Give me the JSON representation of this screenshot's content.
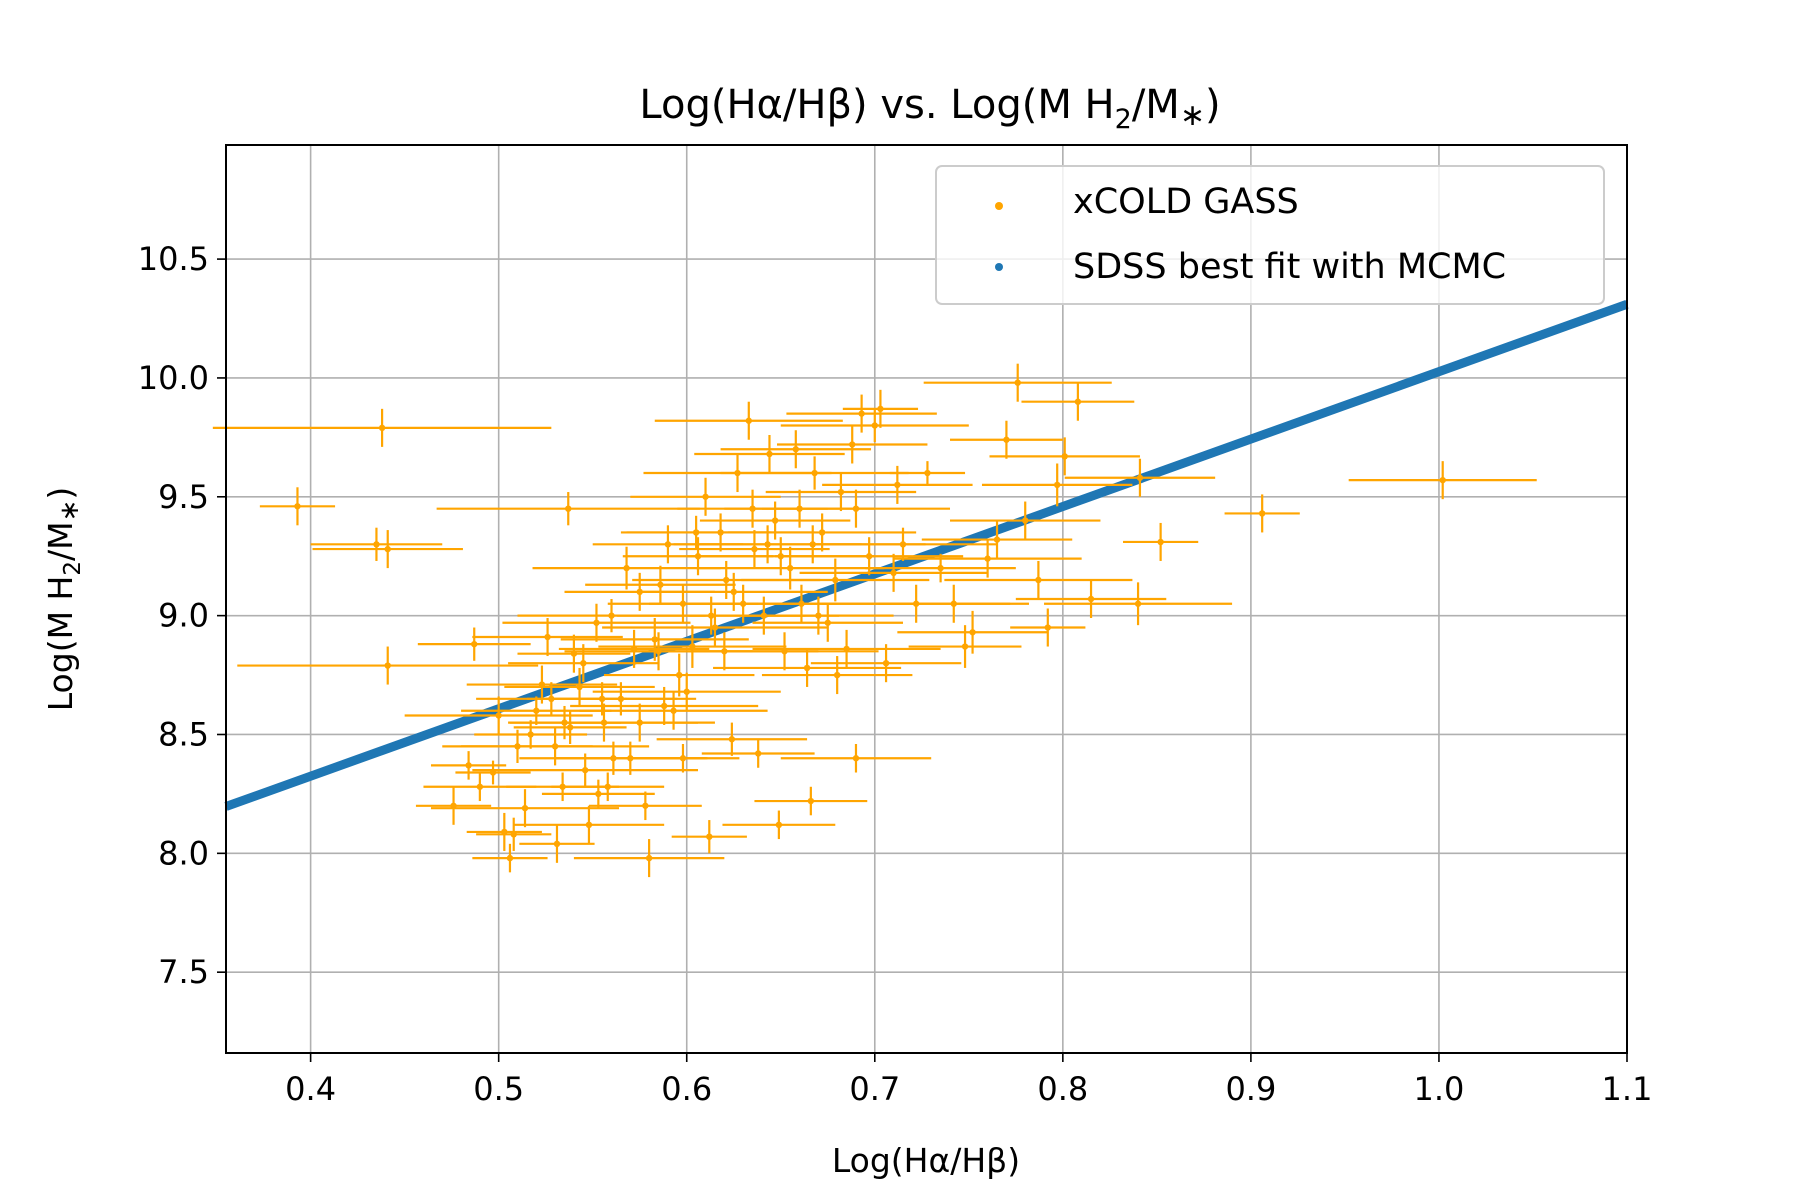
{
  "chart_data": {
    "type": "scatter",
    "title_parts": {
      "main": "Log(Hα/Hβ) vs. Log(M H",
      "sub": "2",
      "rest": "/M",
      "star": "∗",
      "close": ")"
    },
    "xlabel": "Log(Hα/Hβ)",
    "ylabel_parts": {
      "main": "Log(M H",
      "sub": "2",
      "rest": "/M",
      "star": "∗",
      "close": ")"
    },
    "xlim": [
      0.355,
      1.1
    ],
    "ylim": [
      7.16,
      10.98
    ],
    "x_ticks": [
      0.4,
      0.5,
      0.6,
      0.7,
      0.8,
      0.9,
      1.0,
      1.1
    ],
    "x_tick_labels": [
      "0.4",
      "0.5",
      "0.6",
      "0.7",
      "0.8",
      "0.9",
      "1.0",
      "1.1"
    ],
    "y_ticks": [
      7.5,
      8.0,
      8.5,
      9.0,
      9.5,
      10.0,
      10.5
    ],
    "y_tick_labels": [
      "7.5",
      "8.0",
      "8.5",
      "9.0",
      "9.5",
      "10.0",
      "10.5"
    ],
    "grid": true,
    "legend_position": "top-right",
    "colors": {
      "xcold": "#ffa500",
      "fit": "#1f77b4",
      "grid": "#b0b0b0"
    },
    "series": [
      {
        "name": "xCOLD GASS",
        "kind": "errorbar-scatter",
        "points": [
          [
            0.393,
            9.46,
            0.02,
            0.08
          ],
          [
            0.438,
            9.79,
            0.09,
            0.08
          ],
          [
            0.435,
            9.3,
            0.035,
            0.07
          ],
          [
            0.441,
            9.28,
            0.04,
            0.08
          ],
          [
            0.441,
            8.79,
            0.08,
            0.08
          ],
          [
            0.537,
            9.45,
            0.07,
            0.07
          ],
          [
            0.487,
            8.88,
            0.03,
            0.07
          ],
          [
            0.476,
            8.2,
            0.02,
            0.08
          ],
          [
            0.484,
            8.37,
            0.02,
            0.06
          ],
          [
            0.49,
            8.28,
            0.03,
            0.06
          ],
          [
            0.497,
            8.34,
            0.02,
            0.05
          ],
          [
            0.503,
            8.09,
            0.02,
            0.08
          ],
          [
            0.506,
            7.98,
            0.02,
            0.06
          ],
          [
            0.508,
            8.08,
            0.02,
            0.07
          ],
          [
            0.514,
            8.19,
            0.05,
            0.08
          ],
          [
            0.52,
            8.6,
            0.04,
            0.06
          ],
          [
            0.526,
            8.91,
            0.04,
            0.08
          ],
          [
            0.53,
            8.45,
            0.05,
            0.08
          ],
          [
            0.531,
            8.04,
            0.02,
            0.08
          ],
          [
            0.534,
            8.28,
            0.03,
            0.06
          ],
          [
            0.538,
            8.53,
            0.03,
            0.07
          ],
          [
            0.54,
            8.84,
            0.03,
            0.08
          ],
          [
            0.543,
            8.7,
            0.04,
            0.08
          ],
          [
            0.546,
            8.35,
            0.06,
            0.07
          ],
          [
            0.548,
            8.12,
            0.04,
            0.08
          ],
          [
            0.552,
            8.97,
            0.05,
            0.08
          ],
          [
            0.556,
            8.55,
            0.05,
            0.08
          ],
          [
            0.558,
            8.28,
            0.03,
            0.06
          ],
          [
            0.561,
            8.4,
            0.05,
            0.07
          ],
          [
            0.565,
            8.65,
            0.04,
            0.07
          ],
          [
            0.568,
            9.2,
            0.05,
            0.09
          ],
          [
            0.572,
            8.86,
            0.04,
            0.08
          ],
          [
            0.575,
            9.1,
            0.04,
            0.08
          ],
          [
            0.578,
            8.2,
            0.03,
            0.06
          ],
          [
            0.58,
            7.98,
            0.04,
            0.08
          ],
          [
            0.583,
            8.9,
            0.05,
            0.09
          ],
          [
            0.586,
            9.13,
            0.04,
            0.08
          ],
          [
            0.59,
            9.3,
            0.04,
            0.08
          ],
          [
            0.593,
            8.6,
            0.05,
            0.08
          ],
          [
            0.596,
            8.75,
            0.04,
            0.09
          ],
          [
            0.598,
            9.05,
            0.04,
            0.08
          ],
          [
            0.6,
            8.68,
            0.05,
            0.08
          ],
          [
            0.603,
            8.87,
            0.05,
            0.09
          ],
          [
            0.606,
            9.25,
            0.04,
            0.08
          ],
          [
            0.61,
            9.5,
            0.04,
            0.08
          ],
          [
            0.612,
            8.07,
            0.02,
            0.07
          ],
          [
            0.615,
            8.95,
            0.06,
            0.08
          ],
          [
            0.618,
            9.35,
            0.05,
            0.08
          ],
          [
            0.621,
            9.15,
            0.05,
            0.08
          ],
          [
            0.624,
            8.48,
            0.04,
            0.07
          ],
          [
            0.627,
            9.6,
            0.05,
            0.08
          ],
          [
            0.63,
            9.05,
            0.05,
            0.08
          ],
          [
            0.633,
            9.82,
            0.05,
            0.08
          ],
          [
            0.636,
            9.28,
            0.04,
            0.08
          ],
          [
            0.638,
            8.42,
            0.03,
            0.06
          ],
          [
            0.641,
            9.0,
            0.04,
            0.08
          ],
          [
            0.644,
            9.68,
            0.04,
            0.08
          ],
          [
            0.647,
            9.4,
            0.04,
            0.08
          ],
          [
            0.649,
            8.12,
            0.03,
            0.06
          ],
          [
            0.652,
            8.85,
            0.05,
            0.08
          ],
          [
            0.655,
            9.2,
            0.05,
            0.09
          ],
          [
            0.658,
            9.7,
            0.04,
            0.08
          ],
          [
            0.661,
            9.05,
            0.06,
            0.08
          ],
          [
            0.664,
            8.78,
            0.05,
            0.08
          ],
          [
            0.666,
            8.22,
            0.03,
            0.06
          ],
          [
            0.668,
            9.6,
            0.05,
            0.07
          ],
          [
            0.672,
            9.35,
            0.05,
            0.08
          ],
          [
            0.675,
            8.97,
            0.04,
            0.08
          ],
          [
            0.679,
            9.15,
            0.05,
            0.09
          ],
          [
            0.682,
            9.52,
            0.04,
            0.08
          ],
          [
            0.685,
            8.86,
            0.05,
            0.08
          ],
          [
            0.688,
            9.72,
            0.04,
            0.08
          ],
          [
            0.69,
            8.4,
            0.04,
            0.06
          ],
          [
            0.693,
            9.85,
            0.04,
            0.08
          ],
          [
            0.697,
            9.25,
            0.05,
            0.08
          ],
          [
            0.7,
            9.8,
            0.05,
            0.07
          ],
          [
            0.703,
            9.87,
            0.02,
            0.08
          ],
          [
            0.706,
            8.8,
            0.04,
            0.08
          ],
          [
            0.71,
            9.18,
            0.05,
            0.08
          ],
          [
            0.715,
            9.3,
            0.05,
            0.07
          ],
          [
            0.722,
            9.05,
            0.05,
            0.08
          ],
          [
            0.728,
            9.6,
            0.02,
            0.05
          ],
          [
            0.735,
            9.2,
            0.04,
            0.06
          ],
          [
            0.742,
            9.05,
            0.04,
            0.08
          ],
          [
            0.748,
            8.87,
            0.03,
            0.09
          ],
          [
            0.752,
            8.93,
            0.04,
            0.09
          ],
          [
            0.76,
            9.24,
            0.05,
            0.08
          ],
          [
            0.765,
            9.32,
            0.04,
            0.08
          ],
          [
            0.77,
            9.74,
            0.03,
            0.08
          ],
          [
            0.776,
            9.98,
            0.05,
            0.08
          ],
          [
            0.78,
            9.4,
            0.04,
            0.08
          ],
          [
            0.787,
            9.15,
            0.05,
            0.08
          ],
          [
            0.792,
            8.95,
            0.02,
            0.08
          ],
          [
            0.797,
            9.55,
            0.04,
            0.09
          ],
          [
            0.801,
            9.67,
            0.04,
            0.08
          ],
          [
            0.808,
            9.9,
            0.03,
            0.08
          ],
          [
            0.815,
            9.07,
            0.04,
            0.08
          ],
          [
            0.84,
            9.05,
            0.05,
            0.09
          ],
          [
            0.841,
            9.58,
            0.04,
            0.08
          ],
          [
            0.852,
            9.31,
            0.02,
            0.08
          ],
          [
            0.906,
            9.43,
            0.02,
            0.08
          ],
          [
            1.002,
            9.57,
            0.05,
            0.08
          ],
          [
            0.5,
            8.58,
            0.05,
            0.08
          ],
          [
            0.51,
            8.45,
            0.04,
            0.07
          ],
          [
            0.523,
            8.71,
            0.04,
            0.08
          ],
          [
            0.545,
            8.8,
            0.04,
            0.08
          ],
          [
            0.56,
            9.0,
            0.05,
            0.07
          ],
          [
            0.588,
            8.62,
            0.05,
            0.08
          ],
          [
            0.62,
            8.85,
            0.05,
            0.08
          ],
          [
            0.635,
            9.45,
            0.04,
            0.08
          ],
          [
            0.65,
            9.25,
            0.05,
            0.08
          ],
          [
            0.67,
            9.0,
            0.04,
            0.08
          ],
          [
            0.69,
            9.45,
            0.05,
            0.08
          ],
          [
            0.605,
            9.35,
            0.04,
            0.07
          ],
          [
            0.575,
            8.55,
            0.04,
            0.08
          ],
          [
            0.555,
            8.65,
            0.04,
            0.07
          ],
          [
            0.535,
            8.55,
            0.03,
            0.07
          ],
          [
            0.517,
            8.5,
            0.03,
            0.06
          ],
          [
            0.625,
            9.1,
            0.05,
            0.08
          ],
          [
            0.66,
            9.45,
            0.04,
            0.08
          ],
          [
            0.68,
            8.75,
            0.04,
            0.08
          ],
          [
            0.712,
            9.55,
            0.04,
            0.08
          ],
          [
            0.598,
            8.4,
            0.03,
            0.06
          ],
          [
            0.613,
            9.0,
            0.05,
            0.08
          ],
          [
            0.643,
            9.3,
            0.05,
            0.08
          ],
          [
            0.667,
            9.3,
            0.06,
            0.08
          ],
          [
            0.585,
            8.85,
            0.05,
            0.08
          ],
          [
            0.57,
            8.4,
            0.04,
            0.07
          ],
          [
            0.553,
            8.25,
            0.03,
            0.06
          ],
          [
            0.528,
            8.65,
            0.04,
            0.07
          ]
        ]
      },
      {
        "name": "SDSS best fit with MCMC",
        "kind": "line",
        "x": [
          0.355,
          1.1
        ],
        "y": [
          8.197,
          10.31
        ]
      }
    ]
  }
}
